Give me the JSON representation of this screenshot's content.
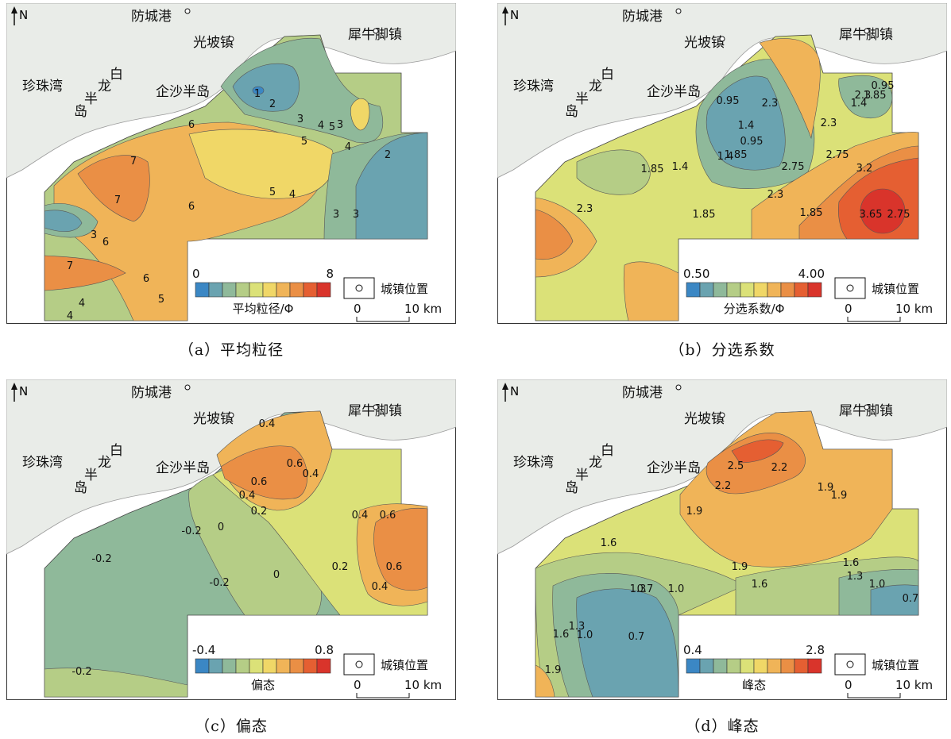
{
  "common": {
    "north_label": "N",
    "towns": {
      "fangchenggang": "防城港",
      "guangpo": "光坡镇",
      "xiniujiao": "犀牛脚镇",
      "zhenzhuwan": "珍珠湾",
      "qisha": "企沙半岛",
      "bailong_1": "白",
      "bailong_2": "龙",
      "bailong_3": "半",
      "bailong_4": "岛"
    },
    "town_legend_label": "城镇位置",
    "scale": {
      "start": "0",
      "end": "10 km"
    }
  },
  "colors": {
    "ramp": [
      "#3b87c4",
      "#6aa3b0",
      "#8fb99a",
      "#b5cd86",
      "#dbe178",
      "#f0d767",
      "#f0b458",
      "#ea8f45",
      "#e55f32",
      "#d9342b"
    ],
    "land": "#e9ece8",
    "border": "#333333"
  },
  "panels": [
    {
      "id": "a",
      "caption": "（a）平均粒径",
      "legend_min": "0",
      "legend_max": "8",
      "legend_title": "平均粒径/Φ",
      "contour_labels": [
        "1",
        "2",
        "3",
        "4",
        "5",
        "4",
        "5",
        "6",
        "7",
        "7",
        "6",
        "6",
        "6",
        "5",
        "4",
        "7",
        "3",
        "2",
        "3",
        "3",
        "4",
        "5",
        "4",
        "3"
      ]
    },
    {
      "id": "b",
      "caption": "（b）分选系数",
      "legend_min": "0.50",
      "legend_max": "4.00",
      "legend_title": "分选系数/Φ",
      "contour_labels": [
        "0.95",
        "1.4",
        "0.95",
        "1.4",
        "1.85",
        "1.4",
        "1.85",
        "2.3",
        "2.75",
        "2.3",
        "1.85",
        "2.3",
        "1.85",
        "2.3",
        "2.75",
        "3.2",
        "3.65",
        "2.75",
        "1.85",
        "2.3",
        "0.95",
        "1.4"
      ]
    },
    {
      "id": "c",
      "caption": "（c）偏态",
      "legend_min": "-0.4",
      "legend_max": "0.8",
      "legend_title": "偏态",
      "contour_labels": [
        "0.4",
        "0.6",
        "0.4",
        "0.6",
        "0.4",
        "0.2",
        "-0.2",
        "0",
        "-0.2",
        "0",
        "-0.2",
        "0.2",
        "0.4",
        "0.6",
        "0.6",
        "0.4",
        "-0.2"
      ]
    },
    {
      "id": "d",
      "caption": "（d）峰态",
      "legend_min": "0.4",
      "legend_max": "2.8",
      "legend_title": "峰态",
      "contour_labels": [
        "2.5",
        "2.2",
        "2.2",
        "1.9",
        "1.9",
        "1.9",
        "1.6",
        "1.3",
        "1.0",
        "0.7",
        "1.9",
        "1.6",
        "1.6",
        "1.3",
        "1.0",
        "0.7",
        "0.7",
        "1.0",
        "1.3",
        "1.6",
        "1.9"
      ]
    }
  ]
}
